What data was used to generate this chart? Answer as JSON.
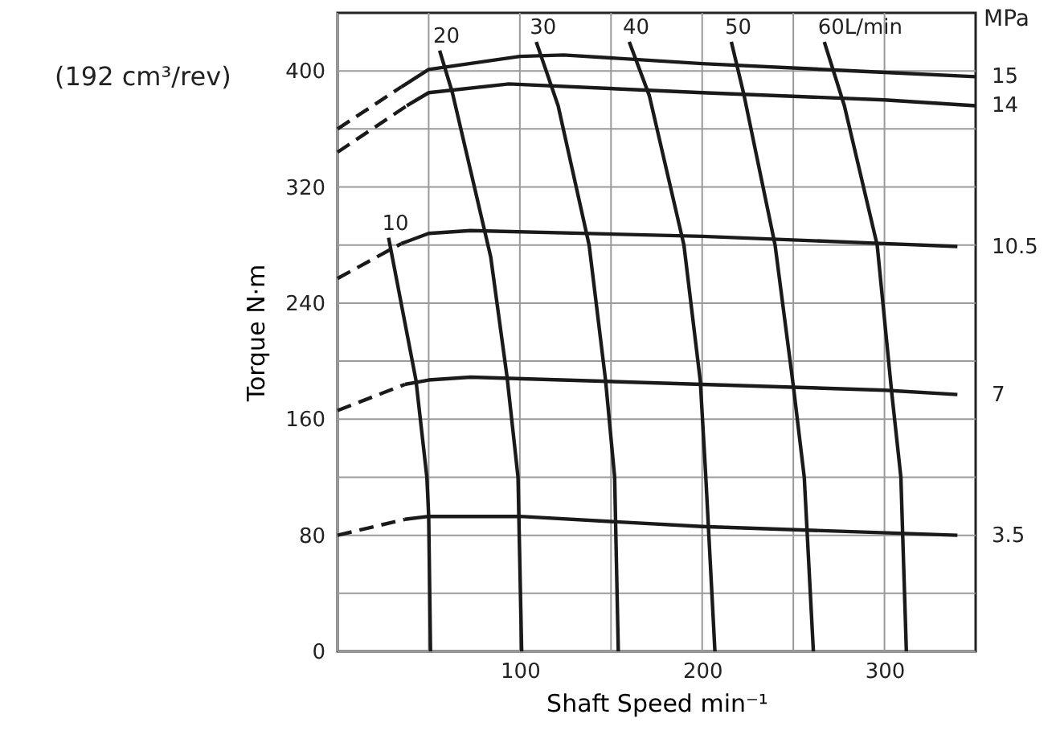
{
  "chart_data": {
    "type": "line",
    "xlabel": "Shaft Speed   min⁻¹",
    "ylabel": "Torque   N·m",
    "annotations": [
      "(192 cm³/rev)",
      "MPa"
    ],
    "xlim": [
      0,
      350
    ],
    "ylim": [
      0,
      440
    ],
    "xticks": [
      {
        "value": 0,
        "label": null
      },
      {
        "value": 50,
        "label": null
      },
      100,
      {
        "value": 150,
        "label": null
      },
      200,
      {
        "value": 250,
        "label": null
      },
      300
    ],
    "yticks": [
      0,
      {
        "value": 40,
        "label": null
      },
      80,
      {
        "value": 120,
        "label": null
      },
      160,
      {
        "value": 200,
        "label": null
      },
      240,
      {
        "value": 280,
        "label": null
      },
      320,
      {
        "value": 360,
        "label": null
      },
      400
    ],
    "grid": true,
    "series": [
      {
        "color": "#1a1a1a",
        "line_style": "dashed",
        "x": [
          0,
          35
        ],
        "values": [
          360,
          389
        ]
      },
      {
        "name": "15",
        "color": "#1a1a1a",
        "line_style": "solid",
        "x": [
          35,
          50,
          100,
          124,
          200,
          300,
          350
        ],
        "values": [
          389,
          401,
          410,
          411,
          405,
          399,
          396
        ]
      },
      {
        "color": "#1a1a1a",
        "line_style": "dashed",
        "x": [
          0,
          38
        ],
        "values": [
          344,
          376
        ]
      },
      {
        "name": "14",
        "color": "#1a1a1a",
        "line_style": "solid",
        "x": [
          38,
          50,
          94,
          200,
          300,
          350
        ],
        "values": [
          376,
          385,
          391,
          385,
          380,
          376
        ]
      },
      {
        "color": "#1a1a1a",
        "line_style": "dashed",
        "x": [
          0,
          35
        ],
        "values": [
          257,
          281
        ]
      },
      {
        "name": "10.5",
        "color": "#1a1a1a",
        "line_style": "solid",
        "x": [
          35,
          50,
          73,
          200,
          300,
          340
        ],
        "values": [
          281,
          288,
          290,
          286,
          281,
          279
        ]
      },
      {
        "color": "#1a1a1a",
        "line_style": "dashed",
        "x": [
          0,
          37
        ],
        "values": [
          166,
          184
        ]
      },
      {
        "name": "7",
        "color": "#1a1a1a",
        "line_style": "solid",
        "x": [
          37,
          50,
          73,
          200,
          300,
          340
        ],
        "values": [
          184,
          187,
          189,
          184,
          180,
          177
        ]
      },
      {
        "color": "#1a1a1a",
        "line_style": "dashed",
        "x": [
          0,
          37
        ],
        "values": [
          80,
          91
        ]
      },
      {
        "name": "3.5",
        "color": "#1a1a1a",
        "line_style": "solid",
        "x": [
          37,
          50,
          100,
          200,
          340
        ],
        "values": [
          91,
          93,
          93,
          86,
          80
        ]
      },
      {
        "name": "10",
        "color": "#1a1a1a",
        "line_style": "solid",
        "x": [
          28,
          43,
          49,
          50,
          51
        ],
        "values": [
          285,
          187,
          120,
          93,
          0
        ]
      },
      {
        "name": "20",
        "color": "#1a1a1a",
        "line_style": "solid",
        "x": [
          56,
          63,
          84,
          93,
          99,
          101
        ],
        "values": [
          414,
          385,
          272,
          189,
          120,
          0
        ]
      },
      {
        "name": "30",
        "color": "#1a1a1a",
        "line_style": "solid",
        "x": [
          109,
          121,
          138,
          147,
          152,
          154
        ],
        "values": [
          420,
          376,
          280,
          187,
          120,
          0
        ]
      },
      {
        "name": "40",
        "color": "#1a1a1a",
        "line_style": "solid",
        "x": [
          160,
          171,
          190,
          199,
          202,
          207
        ],
        "values": [
          420,
          383,
          280,
          186,
          120,
          0
        ]
      },
      {
        "name": "50",
        "color": "#1a1a1a",
        "line_style": "solid",
        "x": [
          216,
          223,
          240,
          250,
          256,
          261
        ],
        "values": [
          420,
          383,
          280,
          183,
          120,
          0
        ]
      },
      {
        "name": "60L/min",
        "color": "#1a1a1a",
        "line_style": "solid",
        "x": [
          267,
          278,
          296,
          304,
          309,
          312
        ],
        "values": [
          420,
          376,
          280,
          178,
          120,
          0
        ]
      }
    ]
  }
}
